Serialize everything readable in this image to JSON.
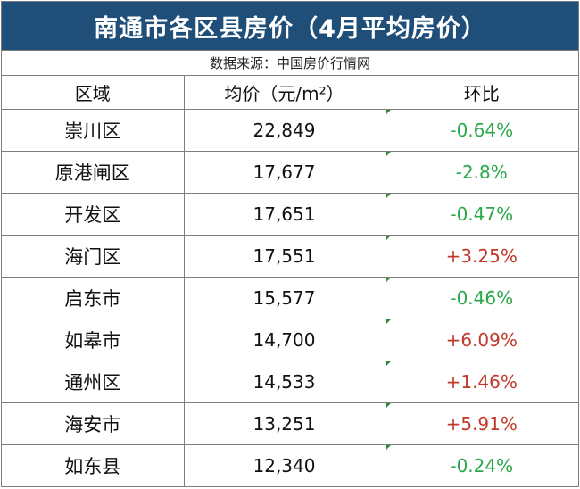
{
  "title": "南通市各区县房价（4月平均房价）",
  "source": "数据来源：中国房价行情网",
  "headers": {
    "region": "区域",
    "price": "均价（元/m²）",
    "change": "环比"
  },
  "colors": {
    "title_bg": "#1f4e79",
    "up": "#c0392b",
    "down": "#2aa84a"
  },
  "rows": [
    {
      "region": "崇川区",
      "price": "22,849",
      "change": "-0.64%",
      "trend": "down"
    },
    {
      "region": "原港闸区",
      "price": "17,677",
      "change": "-2.8%",
      "trend": "down"
    },
    {
      "region": "开发区",
      "price": "17,651",
      "change": "-0.47%",
      "trend": "down"
    },
    {
      "region": "海门区",
      "price": "17,551",
      "change": "+3.25%",
      "trend": "up"
    },
    {
      "region": "启东市",
      "price": "15,577",
      "change": "-0.46%",
      "trend": "down"
    },
    {
      "region": "如皋市",
      "price": "14,700",
      "change": "+6.09%",
      "trend": "up"
    },
    {
      "region": "通州区",
      "price": "14,533",
      "change": "+1.46%",
      "trend": "up"
    },
    {
      "region": "海安市",
      "price": "13,251",
      "change": "+5.91%",
      "trend": "up"
    },
    {
      "region": "如东县",
      "price": "12,340",
      "change": "-0.24%",
      "trend": "down"
    }
  ]
}
